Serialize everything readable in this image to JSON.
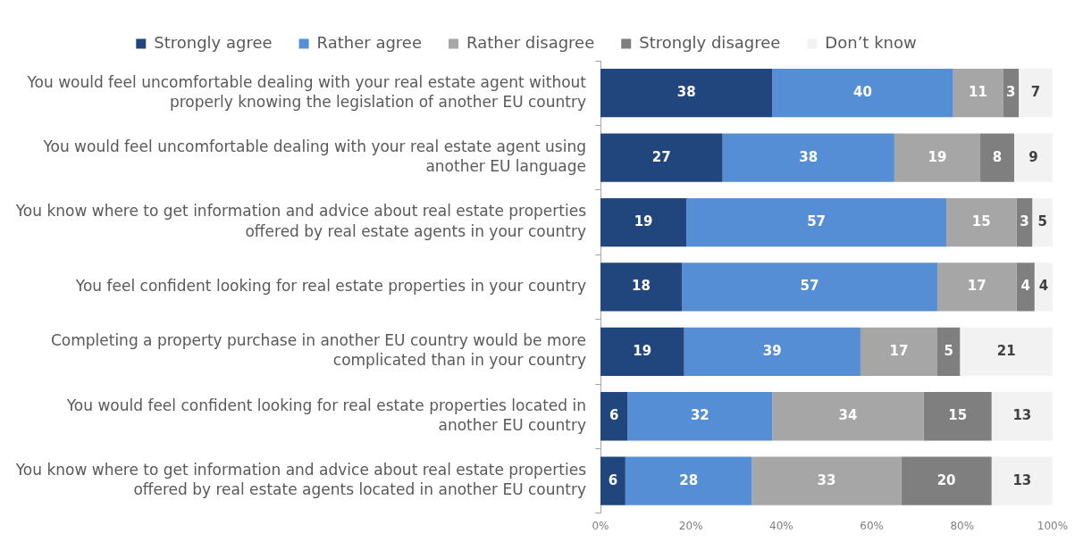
{
  "chart_data": {
    "type": "bar",
    "orientation": "horizontal",
    "stacked": true,
    "categories": [
      "You would feel uncomfortable dealing with your real estate agent without properly knowing the legislation of another EU country",
      "You would feel uncomfortable dealing with your real estate agent using another EU language",
      "You know where to get information and advice about real estate properties offered by real estate agents in your country",
      "You feel confident looking for real estate properties in your country",
      "Completing a property purchase in another EU country would be more complicated than in your country",
      "You would feel confident looking for real estate properties located in another EU country",
      "You know where to get information and advice about real estate properties offered by real estate agents located in another EU country"
    ],
    "series": [
      {
        "name": "Strongly agree",
        "color": "#21467d",
        "values": [
          38,
          27,
          19,
          18,
          18.5,
          6,
          5.5
        ],
        "value_labels": [
          "38",
          "27",
          "19",
          "18",
          "19",
          "6",
          "6"
        ]
      },
      {
        "name": "Rather agree",
        "color": "#558ed5",
        "values": [
          40,
          38,
          57.5,
          56.5,
          39,
          32,
          28
        ],
        "value_labels": [
          "40",
          "38",
          "57",
          "57",
          "39",
          "32",
          "28"
        ]
      },
      {
        "name": "Rather disagree",
        "color": "#a6a6a6",
        "values": [
          11,
          19,
          15.5,
          17.5,
          17,
          33.5,
          33
        ],
        "value_labels": [
          "11",
          "19",
          "15",
          "17",
          "17",
          "34",
          "33"
        ]
      },
      {
        "name": "Strongly disagree",
        "color": "#7f7f7f",
        "values": [
          3.5,
          7.5,
          3.5,
          4,
          5,
          15,
          20
        ],
        "value_labels": [
          "3",
          "8",
          "3",
          "4",
          "5",
          "15",
          "20"
        ]
      },
      {
        "name": "Don’t know",
        "color": "#f2f2f2",
        "values": [
          7.5,
          8.5,
          4.5,
          4,
          20.5,
          13.5,
          13.5
        ],
        "value_labels": [
          "7",
          "9",
          "5",
          "4",
          "21",
          "13",
          "13"
        ]
      }
    ],
    "xlim": [
      0,
      100
    ],
    "xticks": [
      {
        "value": 0,
        "label": "0%"
      },
      {
        "value": 20,
        "label": "20%"
      },
      {
        "value": 40,
        "label": "40%"
      },
      {
        "value": 60,
        "label": "60%"
      },
      {
        "value": 80,
        "label": "80%"
      },
      {
        "value": 100,
        "label": "100%"
      }
    ],
    "grid": false,
    "legend": "top"
  }
}
